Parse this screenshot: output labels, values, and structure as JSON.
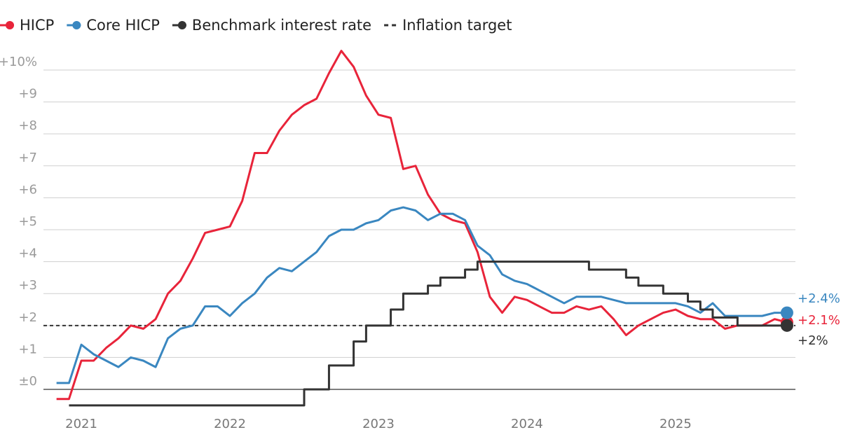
{
  "chart_data": {
    "type": "line",
    "x": [
      2020.833,
      2020.917,
      2021,
      2021.083,
      2021.167,
      2021.25,
      2021.333,
      2021.417,
      2021.5,
      2021.583,
      2021.667,
      2021.75,
      2021.833,
      2021.917,
      2022,
      2022.083,
      2022.167,
      2022.25,
      2022.333,
      2022.417,
      2022.5,
      2022.583,
      2022.667,
      2022.75,
      2022.833,
      2022.917,
      2023,
      2023.083,
      2023.167,
      2023.25,
      2023.333,
      2023.417,
      2023.5,
      2023.583,
      2023.667,
      2023.75,
      2023.833,
      2023.917,
      2024,
      2024.083,
      2024.167,
      2024.25,
      2024.333,
      2024.417,
      2024.5,
      2024.583,
      2024.667,
      2024.75,
      2024.833,
      2024.917,
      2025,
      2025.083,
      2025.167,
      2025.25,
      2025.333,
      2025.417,
      2025.5,
      2025.583,
      2025.667,
      2025.75
    ],
    "series": [
      {
        "name": "HICP",
        "color": "#e8243a",
        "end_label": "+2.1%",
        "values": [
          -0.3,
          -0.3,
          0.9,
          0.9,
          1.3,
          1.6,
          2.0,
          1.9,
          2.2,
          3.0,
          3.4,
          4.1,
          4.9,
          5.0,
          5.1,
          5.9,
          7.4,
          7.4,
          8.1,
          8.6,
          8.9,
          9.1,
          9.9,
          10.6,
          10.1,
          9.2,
          8.6,
          8.5,
          6.9,
          7.0,
          6.1,
          5.5,
          5.3,
          5.2,
          4.3,
          2.9,
          2.4,
          2.9,
          2.8,
          2.6,
          2.4,
          2.4,
          2.6,
          2.5,
          2.6,
          2.2,
          1.7,
          2.0,
          2.2,
          2.4,
          2.5,
          2.3,
          2.2,
          2.2,
          1.9,
          2.0,
          2.0,
          2.0,
          2.2,
          2.1
        ]
      },
      {
        "name": "Core HICP",
        "color": "#3a87c0",
        "end_label": "+2.4%",
        "values": [
          0.2,
          0.2,
          1.4,
          1.1,
          0.9,
          0.7,
          1.0,
          0.9,
          0.7,
          1.6,
          1.9,
          2.0,
          2.6,
          2.6,
          2.3,
          2.7,
          3.0,
          3.5,
          3.8,
          3.7,
          4.0,
          4.3,
          4.8,
          5.0,
          5.0,
          5.2,
          5.3,
          5.6,
          5.7,
          5.6,
          5.3,
          5.5,
          5.5,
          5.3,
          4.5,
          4.2,
          3.6,
          3.4,
          3.3,
          3.1,
          2.9,
          2.7,
          2.9,
          2.9,
          2.9,
          2.8,
          2.7,
          2.7,
          2.7,
          2.7,
          2.7,
          2.6,
          2.4,
          2.7,
          2.3,
          2.3,
          2.3,
          2.3,
          2.4,
          2.4
        ]
      },
      {
        "name": "Benchmark interest rate",
        "color": "#333333",
        "step": true,
        "end_label": "+2%",
        "values": [
          null,
          -0.5,
          -0.5,
          -0.5,
          -0.5,
          -0.5,
          -0.5,
          -0.5,
          -0.5,
          -0.5,
          -0.5,
          -0.5,
          -0.5,
          -0.5,
          -0.5,
          -0.5,
          -0.5,
          -0.5,
          -0.5,
          -0.5,
          0,
          0,
          0.75,
          0.75,
          1.5,
          2.0,
          2.0,
          2.5,
          3.0,
          3.0,
          3.25,
          3.5,
          3.5,
          3.75,
          4.0,
          4.0,
          4.0,
          4.0,
          4.0,
          4.0,
          4.0,
          4.0,
          4.0,
          3.75,
          3.75,
          3.75,
          3.5,
          3.25,
          3.25,
          3.0,
          3.0,
          2.75,
          2.5,
          2.25,
          2.25,
          2.0,
          2.0,
          2.0,
          2.0,
          2.0
        ]
      }
    ],
    "reference_lines": [
      {
        "name": "Inflation target",
        "value": 2,
        "color": "#333333",
        "dashed": true
      }
    ],
    "xlim": [
      2020.745,
      2025.807
    ],
    "xticks": [
      2021,
      2022,
      2023,
      2024,
      2025
    ],
    "ylim": [
      -0.6,
      10.6
    ],
    "yticks": [
      {
        "value": 0,
        "label": "±0"
      },
      {
        "value": 1,
        "label": "+1"
      },
      {
        "value": 2,
        "label": "+2"
      },
      {
        "value": 3,
        "label": "+3"
      },
      {
        "value": 4,
        "label": "+4"
      },
      {
        "value": 5,
        "label": "+5"
      },
      {
        "value": 6,
        "label": "+6"
      },
      {
        "value": 7,
        "label": "+7"
      },
      {
        "value": 8,
        "label": "+8"
      },
      {
        "value": 9,
        "label": "+9"
      },
      {
        "value": 10,
        "label": "+10%"
      }
    ],
    "grid": true
  }
}
